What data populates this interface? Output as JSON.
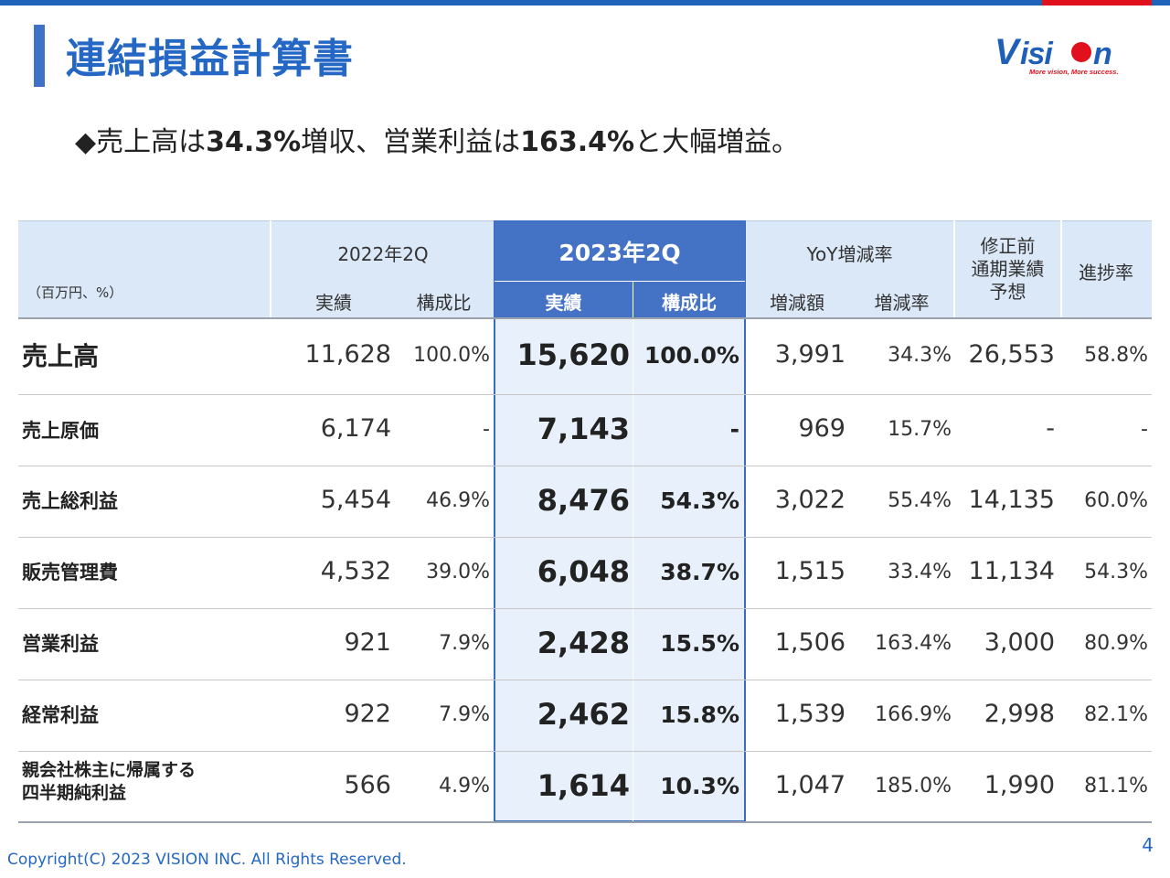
{
  "header": {
    "title": "連結損益計算書",
    "logo": {
      "text": "VISION",
      "tagline": "More vision, More success."
    }
  },
  "headline": {
    "bullet": "◆",
    "part1": "売上高は",
    "value1": "34.3%",
    "part2": "増収、営業利益は",
    "value2": "163.4%",
    "part3": "と大幅増益。"
  },
  "table": {
    "unit_note": "（百万円、%）",
    "headers": {
      "prev_period": "2022年2Q",
      "curr_period": "2023年2Q",
      "yoy": "YoY増減率",
      "forecast": "修正前\n通期業績\n予想",
      "progress": "進捗率",
      "actual_prev": "実績",
      "ratio_prev": "構成比",
      "actual_curr": "実績",
      "ratio_curr": "構成比",
      "diff": "増減額",
      "diff_rate": "増減率"
    },
    "rows": [
      {
        "label": "売上高",
        "prev": "11,628",
        "prev_ratio": "100.0%",
        "curr": "15,620",
        "curr_ratio": "100.0%",
        "diff": "3,991",
        "rate": "34.3%",
        "forecast": "26,553",
        "progress": "58.8%"
      },
      {
        "label": "売上原価",
        "prev": "6,174",
        "prev_ratio": "-",
        "curr": "7,143",
        "curr_ratio": "-",
        "diff": "969",
        "rate": "15.7%",
        "forecast": "-",
        "progress": "-"
      },
      {
        "label": "売上総利益",
        "prev": "5,454",
        "prev_ratio": "46.9%",
        "curr": "8,476",
        "curr_ratio": "54.3%",
        "diff": "3,022",
        "rate": "55.4%",
        "forecast": "14,135",
        "progress": "60.0%"
      },
      {
        "label": "販売管理費",
        "prev": "4,532",
        "prev_ratio": "39.0%",
        "curr": "6,048",
        "curr_ratio": "38.7%",
        "diff": "1,515",
        "rate": "33.4%",
        "forecast": "11,134",
        "progress": "54.3%"
      },
      {
        "label": "営業利益",
        "prev": "921",
        "prev_ratio": "7.9%",
        "curr": "2,428",
        "curr_ratio": "15.5%",
        "diff": "1,506",
        "rate": "163.4%",
        "forecast": "3,000",
        "progress": "80.9%"
      },
      {
        "label": "経常利益",
        "prev": "922",
        "prev_ratio": "7.9%",
        "curr": "2,462",
        "curr_ratio": "15.8%",
        "diff": "1,539",
        "rate": "166.9%",
        "forecast": "2,998",
        "progress": "82.1%"
      },
      {
        "label": "親会社株主に帰属する\n四半期純利益",
        "prev": "566",
        "prev_ratio": "4.9%",
        "curr": "1,614",
        "curr_ratio": "10.3%",
        "diff": "1,047",
        "rate": "185.0%",
        "forecast": "1,990",
        "progress": "81.1%"
      }
    ]
  },
  "footer": {
    "copyright": "Copyright(C) 2023 VISION INC. All Rights Reserved.",
    "page_number": "4"
  },
  "colors": {
    "accent_blue": "#2467c4",
    "header_bg": "#dbe8f8",
    "highlight_header": "#4472c4",
    "highlight_body": "#e7f0fb",
    "logo_red": "#e0101c"
  }
}
